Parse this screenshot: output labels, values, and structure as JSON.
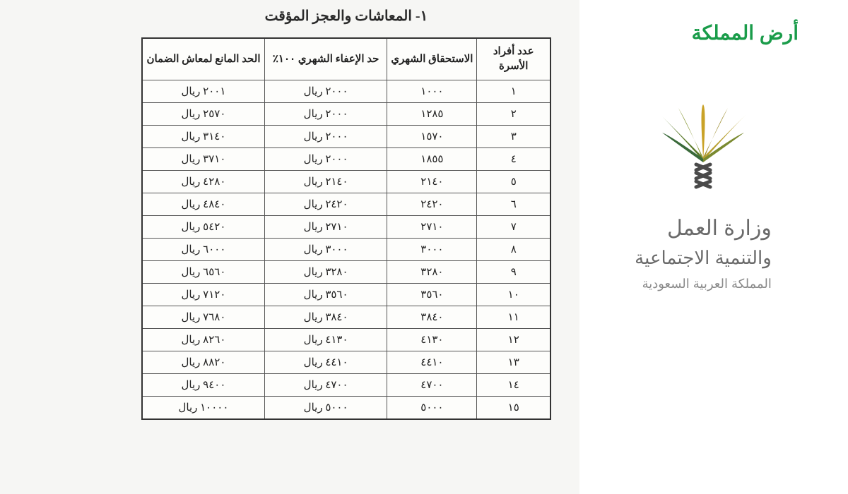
{
  "watermark": "أرض المملكة",
  "ministry": {
    "line1": "وزارة العمل",
    "line2": "والتنمية الاجتماعية",
    "line3": "المملكة العربية السعودية"
  },
  "logo": {
    "frond_colors": [
      "#c9a227",
      "#8a9a3a",
      "#5a7a2a",
      "#3a6a3a",
      "#9a8a2a",
      "#b8a030",
      "#7a8a30"
    ],
    "trunk_color": "#4a4a4a"
  },
  "table": {
    "title": "١-  المعاشات والعجز المؤقت",
    "columns": [
      "عدد أفراد الأسرة",
      "الاستحقاق الشهري",
      "حد الإعفاء الشهري ١٠٠٪",
      "الحد المانع لمعاش الضمان"
    ],
    "currency": "ريال",
    "rows": [
      {
        "n": "١",
        "entitlement": "١٠٠٠",
        "exemption": "٢٠٠٠",
        "limit": "٢٠٠١"
      },
      {
        "n": "٢",
        "entitlement": "١٢٨٥",
        "exemption": "٢٠٠٠",
        "limit": "٢٥٧٠"
      },
      {
        "n": "٣",
        "entitlement": "١٥٧٠",
        "exemption": "٢٠٠٠",
        "limit": "٣١٤٠"
      },
      {
        "n": "٤",
        "entitlement": "١٨٥٥",
        "exemption": "٢٠٠٠",
        "limit": "٣٧١٠"
      },
      {
        "n": "٥",
        "entitlement": "٢١٤٠",
        "exemption": "٢١٤٠",
        "limit": "٤٢٨٠"
      },
      {
        "n": "٦",
        "entitlement": "٢٤٢٠",
        "exemption": "٢٤٢٠",
        "limit": "٤٨٤٠"
      },
      {
        "n": "٧",
        "entitlement": "٢٧١٠",
        "exemption": "٢٧١٠",
        "limit": "٥٤٢٠"
      },
      {
        "n": "٨",
        "entitlement": "٣٠٠٠",
        "exemption": "٣٠٠٠",
        "limit": "٦٠٠٠"
      },
      {
        "n": "٩",
        "entitlement": "٣٢٨٠",
        "exemption": "٣٢٨٠",
        "limit": "٦٥٦٠"
      },
      {
        "n": "١٠",
        "entitlement": "٣٥٦٠",
        "exemption": "٣٥٦٠",
        "limit": "٧١٢٠"
      },
      {
        "n": "١١",
        "entitlement": "٣٨٤٠",
        "exemption": "٣٨٤٠",
        "limit": "٧٦٨٠"
      },
      {
        "n": "١٢",
        "entitlement": "٤١٣٠",
        "exemption": "٤١٣٠",
        "limit": "٨٢٦٠"
      },
      {
        "n": "١٣",
        "entitlement": "٤٤١٠",
        "exemption": "٤٤١٠",
        "limit": "٨٨٢٠"
      },
      {
        "n": "١٤",
        "entitlement": "٤٧٠٠",
        "exemption": "٤٧٠٠",
        "limit": "٩٤٠٠"
      },
      {
        "n": "١٥",
        "entitlement": "٥٠٠٠",
        "exemption": "٥٠٠٠",
        "limit": "١٠٠٠٠"
      }
    ]
  },
  "colors": {
    "watermark": "#1a9c4a",
    "ministry_text": "#6a6a6a",
    "table_border": "#333333",
    "background": "#ffffff"
  }
}
